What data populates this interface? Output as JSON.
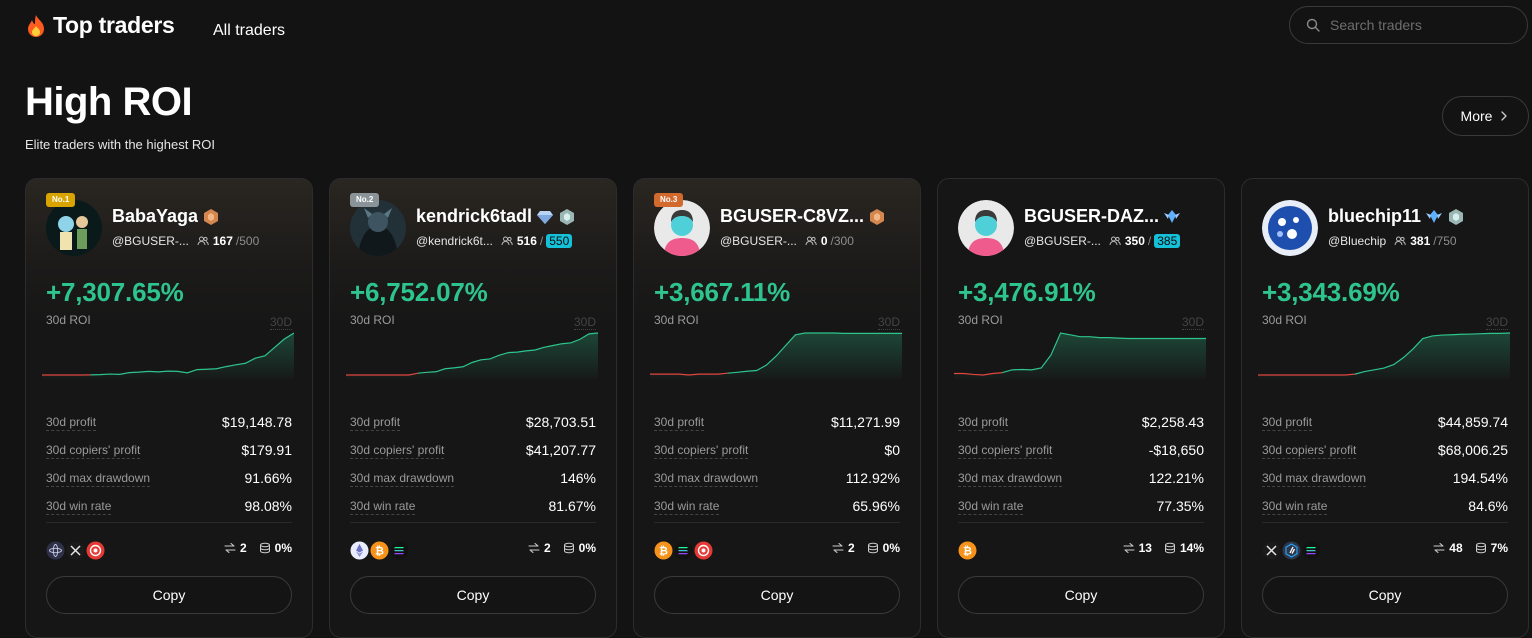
{
  "header": {
    "title": "Top traders",
    "nav_all": "All traders",
    "search_placeholder": "Search traders"
  },
  "section": {
    "title": "High ROI",
    "subtitle": "Elite traders with the highest ROI",
    "more_label": "More"
  },
  "labels": {
    "roi_label": "30d ROI",
    "period": "30D",
    "profit": "30d profit",
    "copiers_profit": "30d copiers' profit",
    "max_drawdown": "30d max drawdown",
    "win_rate": "30d win rate",
    "copy": "Copy"
  },
  "colors": {
    "positive": "#2ec48d",
    "negative": "#e0473f",
    "highlight": "#14c1d9"
  },
  "traders": [
    {
      "rank": "No.1",
      "rank_color": "gold",
      "name": "BabaYaga",
      "handle": "@BGUSER-...",
      "copiers": "167",
      "cap": "/500",
      "cap_highlight": false,
      "roi": "+7,307.65%",
      "profit": "$19,148.78",
      "copiers_profit": "$179.91",
      "max_drawdown": "91.66%",
      "win_rate": "98.08%",
      "coins": [
        "cosmos-coin-icon",
        "x-coin-icon",
        "red-coin-icon"
      ],
      "trades": "2",
      "share": "0%",
      "avatar": "photo",
      "badges": [
        "bronze"
      ],
      "curve": [
        0,
        0,
        0,
        0,
        0,
        0.1,
        0.3,
        0.8,
        0.5,
        2.0,
        2.4,
        3.0,
        2.6,
        3.2,
        3.0,
        1.8,
        4.5,
        4.8,
        5.2,
        7.0,
        8.5,
        9.8,
        14.0,
        16.0,
        23.0,
        30.0,
        35.0
      ]
    },
    {
      "rank": "No.2",
      "rank_color": "silver",
      "name": "kendrick6tadl",
      "handle": "@kendrick6t...",
      "copiers": "516",
      "cap": "550",
      "cap_highlight": true,
      "roi": "+6,752.07%",
      "profit": "$28,703.51",
      "copiers_profit": "$41,207.77",
      "max_drawdown": "146%",
      "win_rate": "81.67%",
      "coins": [
        "eth-coin-icon",
        "btc-coin-icon",
        "sol-coin-icon"
      ],
      "trades": "2",
      "share": "0%",
      "avatar": "dark",
      "badges": [
        "diamond",
        "gem"
      ],
      "curve": [
        0,
        0,
        0,
        0,
        0,
        0,
        0,
        0,
        1.0,
        1.5,
        1.8,
        3.5,
        4.0,
        4.6,
        7.0,
        8.5,
        9.0,
        11.0,
        12.5,
        12.8,
        13.5,
        14.0,
        15.5,
        16.5,
        17.5,
        18.0,
        20.0,
        23.0,
        23.5
      ]
    },
    {
      "rank": "No.3",
      "rank_color": "bronze",
      "name": "BGUSER-C8VZ...",
      "handle": "@BGUSER-...",
      "copiers": "0",
      "cap": "/300",
      "cap_highlight": false,
      "roi": "+3,667.11%",
      "profit": "$11,271.99",
      "copiers_profit": "$0",
      "max_drawdown": "112.92%",
      "win_rate": "65.96%",
      "coins": [
        "btc-coin-icon",
        "sol-coin-icon",
        "red-coin-icon"
      ],
      "trades": "2",
      "share": "0%",
      "avatar": "default",
      "badges": [
        "bronze"
      ],
      "curve": [
        0,
        0,
        0,
        0,
        -0.5,
        0,
        0,
        0,
        0.5,
        1.0,
        1.6,
        2.0,
        5.0,
        10.0,
        16.0,
        22.0,
        23.0,
        23.0,
        23.0,
        23.0,
        22.8,
        22.8,
        22.8,
        22.8,
        22.8,
        22.8,
        22.8
      ]
    },
    {
      "rank": "",
      "rank_color": "",
      "name": "BGUSER-DAZ...",
      "handle": "@BGUSER-...",
      "copiers": "350",
      "cap": "385",
      "cap_highlight": true,
      "roi": "+3,476.91%",
      "profit": "$2,258.43",
      "copiers_profit": "-$18,650",
      "max_drawdown": "122.21%",
      "win_rate": "77.35%",
      "coins": [
        "btc-coin-icon"
      ],
      "trades": "13",
      "share": "14%",
      "avatar": "default",
      "badges": [
        "diamond-wing"
      ],
      "curve": [
        0,
        0,
        -0.5,
        -0.8,
        0,
        0.5,
        2.0,
        2.2,
        2.0,
        3.0,
        10.0,
        22.0,
        21.0,
        20.0,
        20.0,
        19.5,
        19.5,
        19.2,
        19.0,
        19.0,
        19.0,
        19.0,
        19.0,
        19.0,
        19.0,
        19.0,
        19.0
      ]
    },
    {
      "rank": "",
      "rank_color": "",
      "name": "bluechip11",
      "handle": "@Bluechip",
      "copiers": "381",
      "cap": "/750",
      "cap_highlight": false,
      "roi": "+3,343.69%",
      "profit": "$44,859.74",
      "copiers_profit": "$68,006.25",
      "max_drawdown": "194.54%",
      "win_rate": "84.6%",
      "coins": [
        "x-coin-icon",
        "arb-coin-icon",
        "sol-coin-icon"
      ],
      "trades": "48",
      "share": "7%",
      "avatar": "blue",
      "badges": [
        "diamond-wing",
        "gem"
      ],
      "curve": [
        0,
        0,
        0,
        0,
        0,
        0,
        0,
        0,
        0,
        0,
        0.5,
        2.0,
        3.0,
        4.0,
        6.0,
        10.0,
        15.0,
        21.0,
        22.5,
        23.0,
        23.2,
        23.5,
        23.6,
        23.8,
        24.0,
        24.0,
        24.2
      ]
    }
  ]
}
